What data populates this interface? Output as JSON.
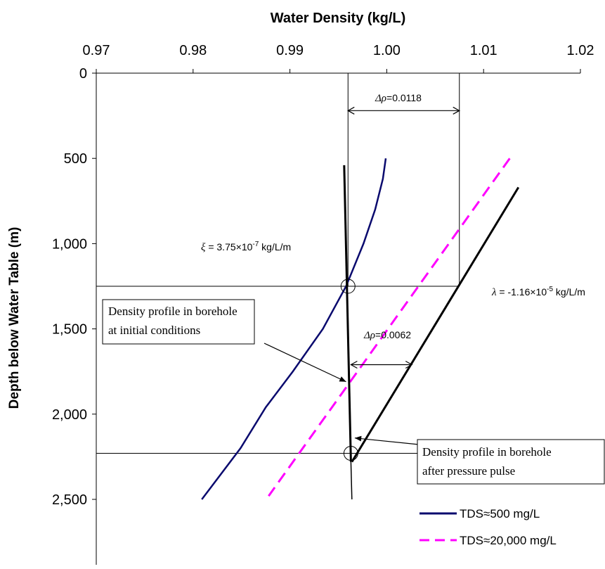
{
  "chart_data": {
    "type": "line",
    "title": "Water Density (kg/L)",
    "xlabel": "Water Density (kg/L)",
    "ylabel": "Depth below Water Table (m)",
    "xlim": [
      0.97,
      1.02
    ],
    "ylim": [
      0,
      2850
    ],
    "y_inverted": true,
    "x_axis_position": "top",
    "x_ticks": [
      0.97,
      0.98,
      0.99,
      1.0,
      1.01,
      1.02
    ],
    "x_tick_labels": [
      "0.97",
      "0.98",
      "0.99",
      "1.00",
      "1.01",
      "1.02"
    ],
    "y_ticks": [
      0,
      500,
      1000,
      1500,
      2000,
      2500
    ],
    "y_tick_labels": [
      "0",
      "500",
      "1,000",
      "1,500",
      "2,000",
      "2,500"
    ],
    "series": [
      {
        "name": "TDS≈500 mg/L",
        "color": "#0a0a6e",
        "style": "solid",
        "points": [
          [
            0.9999,
            500
          ],
          [
            0.9996,
            620
          ],
          [
            0.9988,
            800
          ],
          [
            0.9976,
            1000
          ],
          [
            0.9958,
            1250
          ],
          [
            0.9934,
            1500
          ],
          [
            0.9903,
            1750
          ],
          [
            0.9875,
            1960
          ],
          [
            0.9849,
            2200
          ],
          [
            0.9809,
            2500
          ]
        ]
      },
      {
        "name": "TDS≈20,000 mg/L",
        "color": "#ff00ff",
        "style": "dashed",
        "points": [
          [
            1.0127,
            500
          ],
          [
            0.9878,
            2480
          ]
        ]
      },
      {
        "name": "",
        "color": "#000000",
        "style": "solid-thick",
        "points": [
          [
            0.9956,
            540
          ],
          [
            0.9963,
            2280
          ]
        ]
      },
      {
        "name": "",
        "color": "#000000",
        "style": "solid-thick",
        "points": [
          [
            1.0136,
            670
          ],
          [
            0.9964,
            2280
          ]
        ]
      },
      {
        "name": "",
        "color": "#000000",
        "style": "solid-thin",
        "points": [
          [
            0.9963,
            2280
          ],
          [
            0.9964,
            2500
          ]
        ]
      }
    ],
    "reference_lines": {
      "vertical": [
        0.996,
        1.0075
      ],
      "horizontal": [
        1250,
        2230
      ]
    },
    "markers": [
      {
        "x": 0.996,
        "y": 1250
      },
      {
        "x": 0.9963,
        "y": 2230
      }
    ],
    "annotations": [
      {
        "sym": "Δρ",
        "text": "=0.0118",
        "x1": 0.996,
        "x2": 1.0075,
        "y": 220
      },
      {
        "sym": "Δρ",
        "text": "=0.0062",
        "x1": 0.9963,
        "x2": 1.0026,
        "y": 1710
      },
      {
        "sym": "ξ",
        "text": " = 3.75×10",
        "sup": "-7",
        "unit": " kg/L/m"
      },
      {
        "sym": "λ",
        "text": " = -1.16×10",
        "sup": "-5",
        "unit": " kg/L/m"
      }
    ],
    "callouts": [
      {
        "lines": [
          "Density profile in borehole",
          "at initial conditions"
        ],
        "target": [
          0.9958,
          1810
        ]
      },
      {
        "lines": [
          "Density profile in borehole",
          "after pressure pulse"
        ],
        "target": [
          0.9967,
          2140
        ]
      }
    ],
    "legend_position": "bottom-right",
    "legend": [
      {
        "label": "TDS≈500 mg/L",
        "color": "#0a0a6e",
        "style": "solid"
      },
      {
        "label": "TDS≈20,000 mg/L",
        "color": "#ff00ff",
        "style": "dashed"
      }
    ],
    "grid": false
  }
}
